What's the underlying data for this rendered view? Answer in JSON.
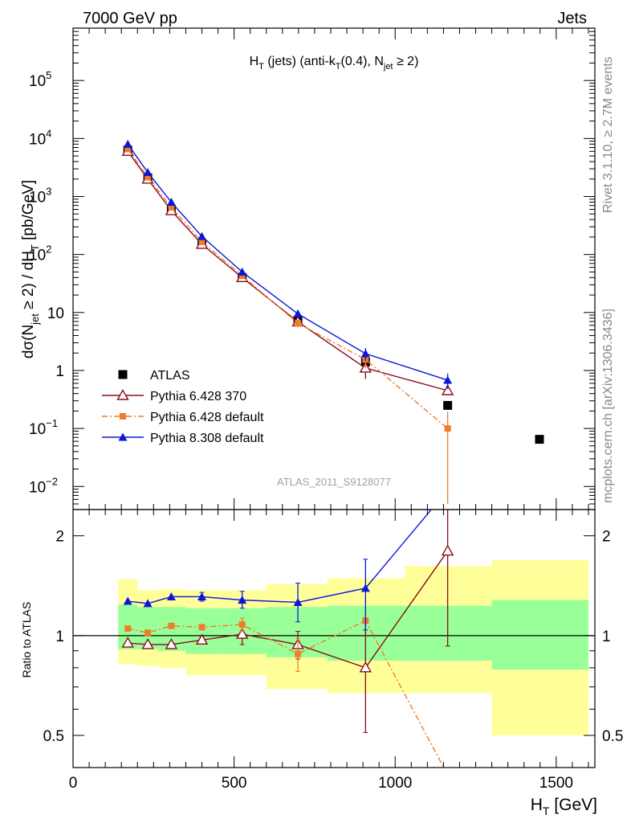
{
  "header": {
    "left": "7000 GeV pp",
    "right": "Jets",
    "side_top": "Rivet 3.1.10, ≥ 2.7M events",
    "side_bottom": "mcplots.cern.ch [arXiv:1306.3436]"
  },
  "chart_data": [
    {
      "type": "line",
      "panel": "main",
      "yscale": "log",
      "title_parts": {
        "a": "H",
        "a_sub": "T",
        "b": " (jets) (anti-k",
        "b_sub": "T",
        "c": "(0.4), N",
        "c_sub": "jet",
        "d": " ≥ 2)"
      },
      "ylabel_parts": {
        "a": "dσ(N",
        "a_sub": "jet",
        "b": " ≥ 2) / dH",
        "b_sub": "T",
        "c": " [pb/GeV]"
      },
      "watermark": "ATLAS_2011_S9128077",
      "xlim": [
        0,
        1620
      ],
      "ylim": [
        0.004,
        800000
      ],
      "yticks": [
        {
          "v": 0.01,
          "base": "10",
          "exp": "−2"
        },
        {
          "v": 0.1,
          "base": "10",
          "exp": "−1"
        },
        {
          "v": 1,
          "base": "1",
          "exp": ""
        },
        {
          "v": 10,
          "base": "10",
          "exp": ""
        },
        {
          "v": 100,
          "base": "10",
          "exp": "2"
        },
        {
          "v": 1000,
          "base": "10",
          "exp": "3"
        },
        {
          "v": 10000,
          "base": "10",
          "exp": "4"
        },
        {
          "v": 100000,
          "base": "10",
          "exp": "5"
        }
      ],
      "legend_position": "lower-left",
      "series": [
        {
          "name": "ATLAS",
          "color": "#000000",
          "marker": "square",
          "line": "none",
          "x": [
            170,
            232,
            305,
            400,
            525,
            698,
            908,
            1163,
            1448
          ],
          "y": [
            6300,
            2100,
            600,
            155,
            40,
            7.3,
            1.4,
            0.25,
            0.065
          ],
          "err": [
            0.1,
            0.1,
            0.1,
            0.1,
            0.1,
            0.1,
            0.1,
            0.1,
            0.1
          ]
        },
        {
          "name": "Pythia 6.428 370",
          "color": "#8b0d1c",
          "marker": "triangle-open",
          "line": "solid",
          "x": [
            170,
            232,
            305,
            400,
            525,
            698,
            908,
            1163
          ],
          "y": [
            6000,
            2000,
            570,
            150,
            40,
            6.9,
            1.1,
            0.45
          ],
          "err": [
            0.05,
            0.05,
            0.05,
            0.07,
            0.1,
            0.15,
            0.35,
            0.1
          ]
        },
        {
          "name": "Pythia 6.428 default",
          "color": "#f07b2b",
          "marker": "square-small",
          "line": "dashdot",
          "x": [
            170,
            232,
            305,
            400,
            525,
            698,
            908,
            1163
          ],
          "y": [
            6600,
            2150,
            650,
            165,
            43,
            6.5,
            1.55,
            0.1
          ],
          "err": [
            0.05,
            0.05,
            0.05,
            0.07,
            0.1,
            0.15,
            0.3,
            0.95
          ]
        },
        {
          "name": "Pythia 8.308 default",
          "color": "#0b17d8",
          "marker": "triangle-filled",
          "line": "solid",
          "x": [
            170,
            232,
            305,
            400,
            525,
            698,
            908,
            1163
          ],
          "y": [
            8000,
            2600,
            800,
            205,
            50,
            9.5,
            1.95,
            0.68
          ],
          "err": [
            0.05,
            0.05,
            0.05,
            0.07,
            0.1,
            0.15,
            0.25,
            0.3
          ]
        }
      ]
    },
    {
      "type": "line",
      "panel": "ratio",
      "yscale": "log",
      "ylabel": "Ratio to ATLAS",
      "xlabel_parts": {
        "a": "H",
        "a_sub": "T",
        "b": " [GeV]"
      },
      "xlim": [
        0,
        1620
      ],
      "ylim": [
        0.4,
        2.4
      ],
      "yticks": [
        {
          "v": 0.5,
          "label": "0.5"
        },
        {
          "v": 1,
          "label": "1"
        },
        {
          "v": 2,
          "label": "2"
        }
      ],
      "xticks": [
        {
          "v": 0,
          "label": "0"
        },
        {
          "v": 500,
          "label": "500"
        },
        {
          "v": 1000,
          "label": "1000"
        },
        {
          "v": 1500,
          "label": "1500"
        }
      ],
      "bands": [
        {
          "x0": 140,
          "x1": 200,
          "yel": [
            0.82,
            1.48
          ],
          "grn": [
            0.91,
            1.24
          ]
        },
        {
          "x0": 200,
          "x1": 265,
          "yel": [
            0.81,
            1.37
          ],
          "grn": [
            0.91,
            1.22
          ]
        },
        {
          "x0": 265,
          "x1": 350,
          "yel": [
            0.8,
            1.38
          ],
          "grn": [
            0.9,
            1.22
          ]
        },
        {
          "x0": 350,
          "x1": 450,
          "yel": [
            0.76,
            1.37
          ],
          "grn": [
            0.88,
            1.21
          ]
        },
        {
          "x0": 450,
          "x1": 600,
          "yel": [
            0.76,
            1.37
          ],
          "grn": [
            0.88,
            1.21
          ]
        },
        {
          "x0": 600,
          "x1": 790,
          "yel": [
            0.69,
            1.43
          ],
          "grn": [
            0.86,
            1.22
          ]
        },
        {
          "x0": 790,
          "x1": 1030,
          "yel": [
            0.67,
            1.49
          ],
          "grn": [
            0.84,
            1.23
          ]
        },
        {
          "x0": 1030,
          "x1": 1300,
          "yel": [
            0.67,
            1.62
          ],
          "grn": [
            0.84,
            1.23
          ]
        },
        {
          "x0": 1300,
          "x1": 1600,
          "yel": [
            0.5,
            1.69
          ],
          "grn": [
            0.79,
            1.28
          ]
        }
      ],
      "series": [
        {
          "name": "Pythia 6.428 370",
          "color": "#8b0d1c",
          "marker": "triangle-open",
          "line": "solid",
          "x": [
            170,
            232,
            305,
            400,
            525,
            698,
            908,
            1163
          ],
          "y": [
            0.95,
            0.94,
            0.94,
            0.97,
            1.01,
            0.94,
            0.8,
            1.8
          ],
          "lo": [
            0.95,
            0.94,
            0.94,
            0.95,
            0.94,
            0.85,
            0.51,
            0.93
          ],
          "hi": [
            0.95,
            0.94,
            0.94,
            0.99,
            1.08,
            1.03,
            1.12,
            3.0
          ]
        },
        {
          "name": "Pythia 6.428 default",
          "color": "#f07b2b",
          "marker": "square-small",
          "line": "dashdot",
          "x": [
            170,
            232,
            305,
            400,
            525,
            698,
            908,
            1163
          ],
          "y": [
            1.05,
            1.02,
            1.07,
            1.06,
            1.08,
            0.88,
            1.11,
            0.38
          ],
          "lo": [
            1.05,
            1.02,
            1.07,
            1.04,
            1.03,
            0.78,
            1.11,
            0.38
          ],
          "hi": [
            1.05,
            1.02,
            1.07,
            1.08,
            1.13,
            0.98,
            1.11,
            0.38
          ]
        },
        {
          "name": "Pythia 8.308 default",
          "color": "#0b17d8",
          "marker": "triangle-filled",
          "line": "solid",
          "x": [
            170,
            232,
            305,
            400,
            525,
            698,
            908,
            1163
          ],
          "y": [
            1.27,
            1.25,
            1.31,
            1.31,
            1.28,
            1.26,
            1.39,
            2.75
          ],
          "lo": [
            1.27,
            1.25,
            1.31,
            1.27,
            1.21,
            1.1,
            1.04,
            2.75
          ],
          "hi": [
            1.27,
            1.25,
            1.31,
            1.35,
            1.36,
            1.44,
            1.7,
            2.75
          ]
        }
      ]
    }
  ]
}
